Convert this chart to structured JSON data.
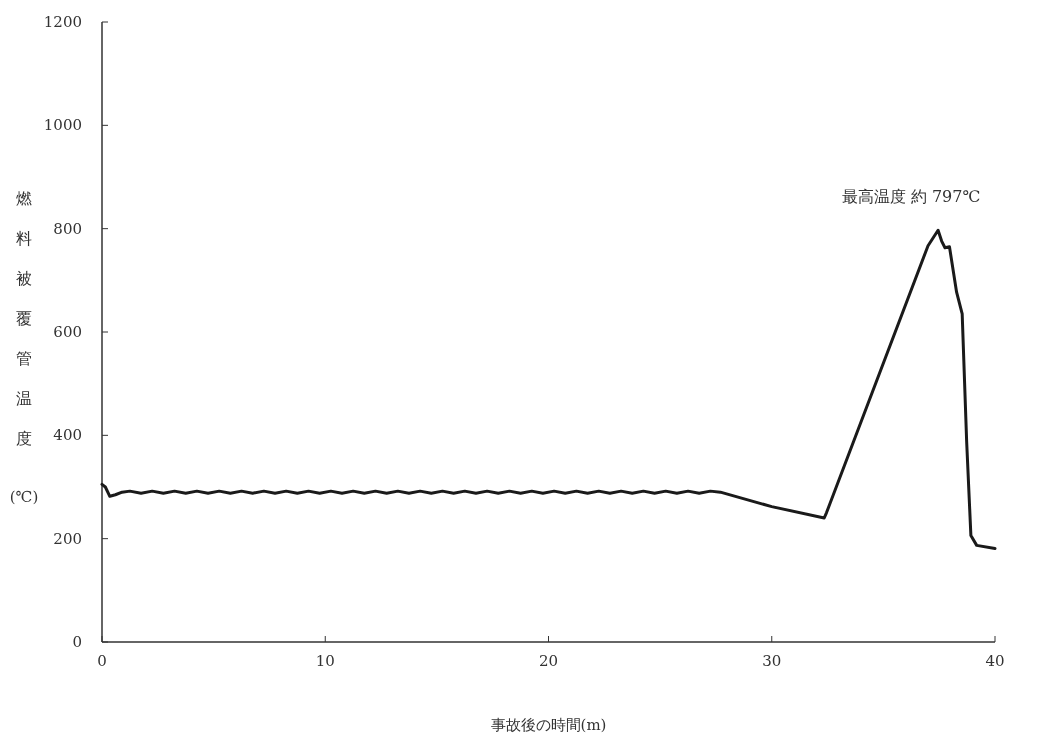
{
  "chart_data": {
    "type": "line",
    "xlabel": "事故後の時間(m)",
    "ylabel": "燃料被覆管温度",
    "y2label": "(℃)",
    "xlim": [
      0,
      40
    ],
    "xticks": [
      0,
      10,
      20,
      30,
      40
    ],
    "ylim": [
      0,
      1200
    ],
    "yticks": [
      0,
      200,
      400,
      600,
      800,
      1000,
      1200
    ],
    "grid": false,
    "annotations": [
      {
        "text": "最高温度 約 797℃",
        "x": 37.45,
        "y": 797
      }
    ],
    "series": [
      {
        "color": "#1a1a1a",
        "x": [
          0,
          0.15,
          0.35,
          0.6,
          0.9,
          1.25,
          1.75,
          2.25,
          2.75,
          3.25,
          3.75,
          4.25,
          4.75,
          5.25,
          5.75,
          6.25,
          6.75,
          7.25,
          7.75,
          8.25,
          8.75,
          9.25,
          9.75,
          10.25,
          10.75,
          11.25,
          11.75,
          12.25,
          12.75,
          13.25,
          13.75,
          14.25,
          14.75,
          15.25,
          15.75,
          16.25,
          16.75,
          17.25,
          17.75,
          18.25,
          18.75,
          19.25,
          19.75,
          20.25,
          20.75,
          21.25,
          21.75,
          22.25,
          22.75,
          23.25,
          23.75,
          24.25,
          24.75,
          25.25,
          25.75,
          26.25,
          26.75,
          27.25,
          27.7,
          30,
          32.35,
          32.45,
          32.6,
          37.0,
          37.24,
          37.45,
          37.61,
          37.76,
          37.96,
          38.28,
          38.53,
          38.73,
          38.92,
          39.18,
          40
        ],
        "values": [
          305,
          300,
          282,
          285,
          290,
          292,
          288,
          292,
          288,
          292,
          288,
          292,
          288,
          292,
          288,
          292,
          288,
          292,
          288,
          292,
          288,
          292,
          288,
          292,
          288,
          292,
          288,
          292,
          288,
          292,
          288,
          292,
          288,
          292,
          288,
          292,
          288,
          292,
          288,
          292,
          288,
          292,
          288,
          292,
          288,
          292,
          288,
          292,
          288,
          292,
          288,
          292,
          288,
          292,
          288,
          292,
          288,
          292,
          290,
          262,
          240,
          250,
          267,
          767,
          783,
          797,
          776,
          763,
          765,
          677,
          635,
          388,
          206,
          187,
          181
        ]
      }
    ]
  }
}
